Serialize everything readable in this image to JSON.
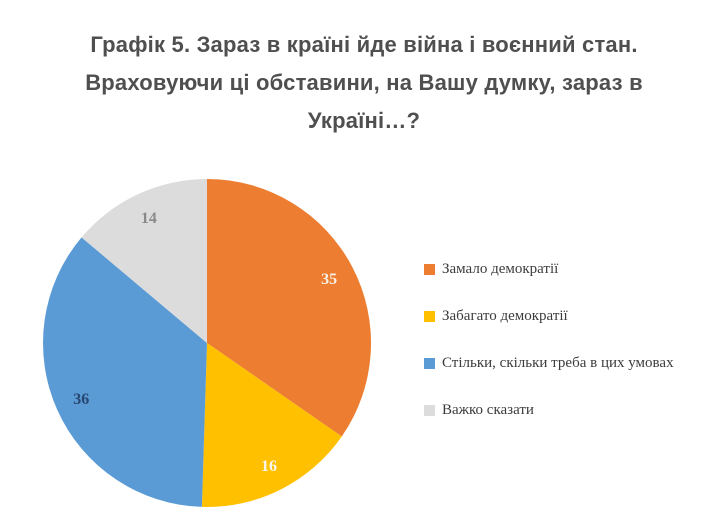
{
  "title": {
    "full": "Графік 5. Зараз в країні йде війна і воєнний стан. Враховуючи ці обставини, на Вашу думку, зараз в Україні…?",
    "lines": [
      "Графік 5. Зараз в країні йде війна і воєнний стан.",
      "Враховуючи ці обставини, на Вашу думку, зараз в",
      "Україні…?"
    ]
  },
  "chart_data": {
    "type": "pie",
    "title": "Графік 5. Зараз в країні йде війна і воєнний стан. Враховуючи ці обставини, на Вашу думку, зараз в Україні…?",
    "start_angle_deg": 0,
    "direction": "clockwise",
    "legend_position": "right",
    "grid": false,
    "categories": [
      "Замало демократії",
      "Забагато демократії",
      "Стільки, скільки треба в цих умовах",
      "Важко сказати"
    ],
    "values": [
      35,
      16,
      36,
      14
    ],
    "slices": [
      {
        "label": "Замало демократії",
        "value": 35,
        "color": "#ED7D31",
        "label_color": "#F8F2E7"
      },
      {
        "label": "Забагато демократії",
        "value": 16,
        "color": "#FFC000",
        "label_color": "#FBF7EF"
      },
      {
        "label": "Стільки, скільки треба в цих умовах",
        "value": 36,
        "color": "#5B9BD5",
        "label_color": "#27466E"
      },
      {
        "label": "Важко сказати",
        "value": 14,
        "color": "#DCDCDC",
        "label_color": "#8A8A8A"
      }
    ]
  },
  "colors": {
    "background": "#FFFFFF",
    "title_text": "#4F4F4F",
    "legend_text": "#3C3C3C"
  }
}
